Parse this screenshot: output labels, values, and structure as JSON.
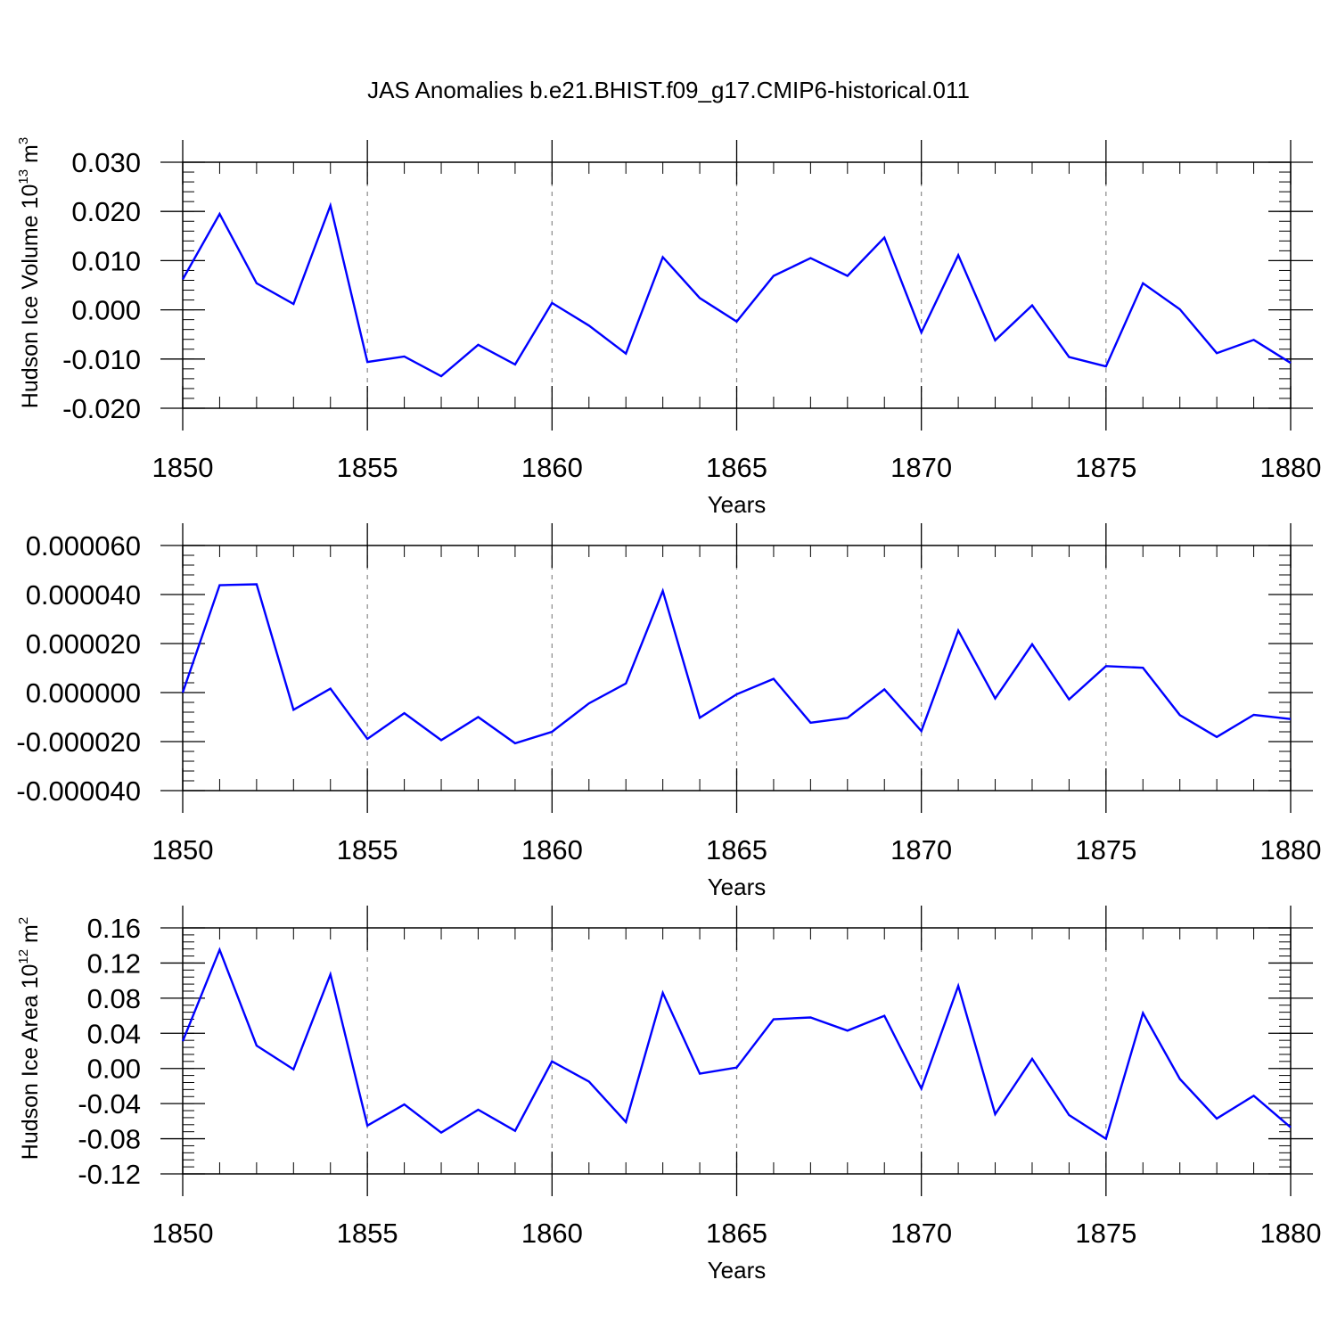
{
  "figure": {
    "title": "JAS Anomalies b.e21.BHIST.f09_g17.CMIP6-historical.011",
    "line_color": "#0000ff"
  },
  "chart_data": [
    {
      "type": "line",
      "title": "",
      "ylabel": {
        "base": "Hudson Ice Volume 10",
        "exp": "13",
        "unit": " m",
        "unit_exp": "3"
      },
      "xlabel": "Years",
      "xlim": [
        1850,
        1880
      ],
      "ylim": [
        -0.02,
        0.03
      ],
      "grid": "vertical dashed at major x ticks",
      "x_ticks": [
        1850,
        1855,
        1860,
        1865,
        1870,
        1875,
        1880
      ],
      "x_tick_labels": [
        "1850",
        "1855",
        "1860",
        "1865",
        "1870",
        "1875",
        "1880"
      ],
      "y_ticks": [
        -0.02,
        -0.01,
        0.0,
        0.01,
        0.02,
        0.03
      ],
      "y_tick_labels": [
        "-0.020",
        "-0.010",
        "0.000",
        "0.010",
        "0.020",
        "0.030"
      ],
      "y_minor_step": 0.002,
      "x": [
        1850,
        1851,
        1852,
        1853,
        1854,
        1855,
        1856,
        1857,
        1858,
        1859,
        1860,
        1861,
        1862,
        1863,
        1864,
        1865,
        1866,
        1867,
        1868,
        1869,
        1870,
        1871,
        1872,
        1873,
        1874,
        1875,
        1876,
        1877,
        1878,
        1879,
        1880
      ],
      "series": [
        {
          "name": "",
          "color": "#0000ff",
          "values": [
            0.0062,
            0.0195,
            0.0054,
            0.0012,
            0.0212,
            -0.0106,
            -0.0095,
            -0.0135,
            -0.0071,
            -0.0111,
            0.0014,
            -0.0032,
            -0.0089,
            0.0107,
            0.0024,
            -0.0024,
            0.0069,
            0.0105,
            0.0069,
            0.0147,
            -0.0046,
            0.0111,
            -0.0062,
            0.0009,
            -0.0096,
            -0.0115,
            0.0054,
            0.0001,
            -0.0088,
            -0.0061,
            -0.0108
          ]
        }
      ]
    },
    {
      "type": "line",
      "title": "",
      "ylabel": null,
      "xlabel": "Years",
      "xlim": [
        1850,
        1880
      ],
      "ylim": [
        -4e-05,
        6e-05
      ],
      "grid": "vertical dashed at major x ticks",
      "x_ticks": [
        1850,
        1855,
        1860,
        1865,
        1870,
        1875,
        1880
      ],
      "x_tick_labels": [
        "1850",
        "1855",
        "1860",
        "1865",
        "1870",
        "1875",
        "1880"
      ],
      "y_ticks": [
        -4e-05,
        -2e-05,
        0.0,
        2e-05,
        4e-05,
        6e-05
      ],
      "y_tick_labels": [
        "-0.000040",
        "-0.000020",
        "0.000000",
        "0.000020",
        "0.000040",
        "0.000060"
      ],
      "y_minor_step": 4e-06,
      "x": [
        1850,
        1851,
        1852,
        1853,
        1854,
        1855,
        1856,
        1857,
        1858,
        1859,
        1860,
        1861,
        1862,
        1863,
        1864,
        1865,
        1866,
        1867,
        1868,
        1869,
        1870,
        1871,
        1872,
        1873,
        1874,
        1875,
        1876,
        1877,
        1878,
        1879,
        1880
      ],
      "series": [
        {
          "name": "",
          "color": "#0000ff",
          "values": [
            0.0,
            4.38e-05,
            4.42e-05,
            -7e-06,
            1.6e-06,
            -1.89e-05,
            -8.4e-06,
            -1.94e-05,
            -1e-05,
            -2.07e-05,
            -1.6e-05,
            -4.4e-06,
            3.7e-06,
            4.15e-05,
            -1.03e-05,
            -7e-07,
            5.6e-06,
            -1.23e-05,
            -1.03e-05,
            1.3e-06,
            -1.57e-05,
            2.53e-05,
            -2.4e-06,
            1.97e-05,
            -2.8e-06,
            1.08e-05,
            1.01e-05,
            -9.2e-06,
            -1.81e-05,
            -9.1e-06,
            -1.08e-05
          ]
        }
      ]
    },
    {
      "type": "line",
      "title": "",
      "ylabel": {
        "base": "Hudson Ice Area 10",
        "exp": "12",
        "unit": " m",
        "unit_exp": "2"
      },
      "xlabel": "Years",
      "xlim": [
        1850,
        1880
      ],
      "ylim": [
        -0.12,
        0.16
      ],
      "grid": "vertical dashed at major x ticks",
      "x_ticks": [
        1850,
        1855,
        1860,
        1865,
        1870,
        1875,
        1880
      ],
      "x_tick_labels": [
        "1850",
        "1855",
        "1860",
        "1865",
        "1870",
        "1875",
        "1880"
      ],
      "y_ticks": [
        -0.12,
        -0.08,
        -0.04,
        0.0,
        0.04,
        0.08,
        0.12,
        0.16
      ],
      "y_tick_labels": [
        "-0.12",
        "-0.08",
        "-0.04",
        "0.00",
        "0.04",
        "0.08",
        "0.12",
        "0.16"
      ],
      "y_minor_step": 0.008,
      "x": [
        1850,
        1851,
        1852,
        1853,
        1854,
        1855,
        1856,
        1857,
        1858,
        1859,
        1860,
        1861,
        1862,
        1863,
        1864,
        1865,
        1866,
        1867,
        1868,
        1869,
        1870,
        1871,
        1872,
        1873,
        1874,
        1875,
        1876,
        1877,
        1878,
        1879,
        1880
      ],
      "series": [
        {
          "name": "",
          "color": "#0000ff",
          "values": [
            0.031,
            0.135,
            0.026,
            -0.001,
            0.107,
            -0.065,
            -0.041,
            -0.073,
            -0.047,
            -0.071,
            0.008,
            -0.015,
            -0.061,
            0.086,
            -0.006,
            0.001,
            0.056,
            0.058,
            0.043,
            0.06,
            -0.023,
            0.094,
            -0.052,
            0.011,
            -0.053,
            -0.08,
            0.063,
            -0.012,
            -0.057,
            -0.031,
            -0.067
          ]
        }
      ]
    }
  ]
}
